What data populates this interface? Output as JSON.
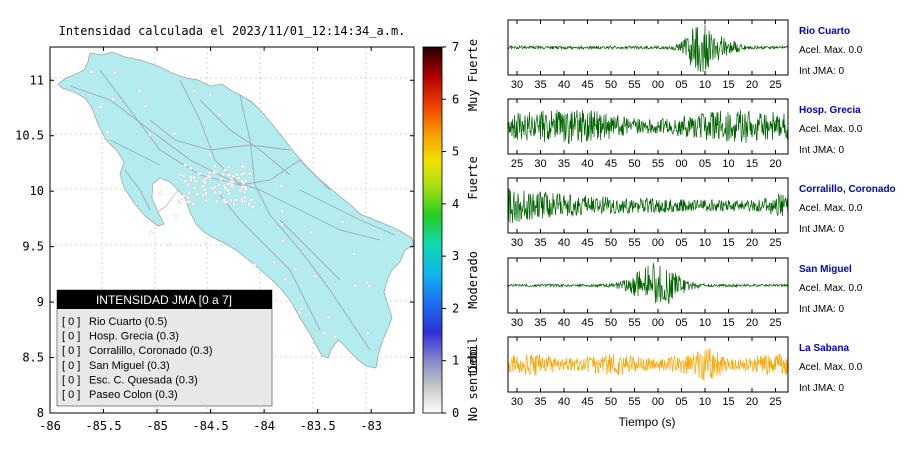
{
  "map": {
    "title": "Intensidad calculada el 2023/11/01_12:14:34_a.m.",
    "x_ticks": [
      "-86",
      "-85.5",
      "-85",
      "-84.5",
      "-84",
      "-83.5",
      "-83"
    ],
    "y_ticks": [
      "11",
      "10.5",
      "10",
      "9.5",
      "9",
      "8.5",
      "8"
    ],
    "xlim": [
      -86,
      -82.6
    ],
    "ylim": [
      8,
      11.3
    ],
    "land_color": "#b3ebee",
    "border_color": "#888888"
  },
  "legend": {
    "title": "INTENSIDAD JMA [0 a 7]",
    "items": [
      {
        "bracket": "[ 0 ]",
        "label": "Rio Cuarto (0.5)"
      },
      {
        "bracket": "[ 0 ]",
        "label": "Hosp. Grecia (0.3)"
      },
      {
        "bracket": "[ 0 ]",
        "label": "Corralillo, Coronado (0.3)"
      },
      {
        "bracket": "[ 0 ]",
        "label": "San Miguel (0.3)"
      },
      {
        "bracket": "[ 0 ]",
        "label": "Esc. C. Quesada (0.3)"
      },
      {
        "bracket": "[ 0 ]",
        "label": "Paseo Colon (0.3)"
      }
    ]
  },
  "colorbar": {
    "ticks": [
      "7",
      "6",
      "5",
      "4",
      "3",
      "2",
      "1",
      "0"
    ],
    "labels": [
      "Muy Fuerte",
      "Fuerte",
      "Moderado",
      "Debil",
      "No sentido"
    ],
    "range": [
      0,
      7
    ]
  },
  "waveforms": {
    "xlabel": "Tiempo (s)",
    "panels": [
      {
        "station": "Rio Cuarto",
        "acel": "Acel. Max. 0.0",
        "jma": "Int JMA: 0",
        "color": "#006400",
        "ticks": [
          "30",
          "35",
          "40",
          "45",
          "50",
          "55",
          "00",
          "05",
          "10",
          "15",
          "20",
          "25"
        ],
        "profile": "burst-late"
      },
      {
        "station": "Hosp. Grecia",
        "acel": "Acel. Max. 0.0",
        "jma": "Int JMA: 0",
        "color": "#006400",
        "ticks": [
          "25",
          "30",
          "35",
          "40",
          "45",
          "50",
          "55",
          "00",
          "05",
          "10",
          "15",
          "20"
        ],
        "profile": "noise-strong"
      },
      {
        "station": "Corralillo, Coronado",
        "acel": "Acel. Max. 0.0",
        "jma": "Int JMA: 0",
        "color": "#006400",
        "ticks": [
          "30",
          "35",
          "40",
          "45",
          "50",
          "55",
          "00",
          "05",
          "10",
          "15",
          "20",
          "25"
        ],
        "profile": "decay"
      },
      {
        "station": "San Miguel",
        "acel": "Acel. Max. 0.0",
        "jma": "Int JMA: 0",
        "color": "#006400",
        "ticks": [
          "30",
          "35",
          "40",
          "45",
          "50",
          "55",
          "00",
          "05",
          "10",
          "15",
          "20",
          "25"
        ],
        "profile": "burst-mid"
      },
      {
        "station": "La Sabana",
        "acel": "Acel. Max. 0.0",
        "jma": "Int JMA: 0",
        "color": "#ffa500",
        "ticks": [
          "30",
          "35",
          "40",
          "45",
          "50",
          "55",
          "00",
          "05",
          "10",
          "15",
          "20",
          "25"
        ],
        "profile": "noise-orange"
      }
    ]
  }
}
